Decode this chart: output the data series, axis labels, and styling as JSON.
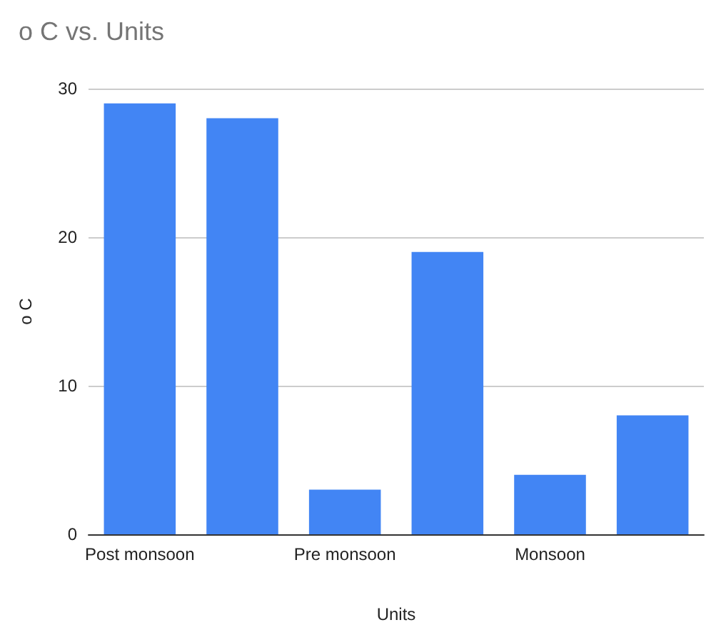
{
  "chart_data": {
    "type": "bar",
    "title": "o C vs. Units",
    "xlabel": "Units",
    "ylabel": "o C",
    "categories": [
      "Post monsoon",
      null,
      "Pre monsoon",
      null,
      "Monsoon",
      null
    ],
    "values": [
      29,
      28,
      3,
      19,
      4,
      8
    ],
    "color": "#4285f4",
    "ylim": [
      0,
      30
    ],
    "yticks": [
      0,
      10,
      20,
      30
    ],
    "grid": "y"
  }
}
